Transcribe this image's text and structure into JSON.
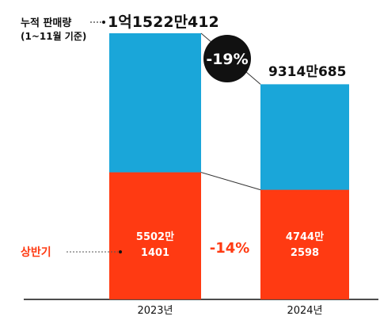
{
  "chart_data": {
    "type": "bar",
    "stacked": true,
    "categories": [
      "2023년",
      "2024년"
    ],
    "series": [
      {
        "name": "상반기",
        "values": [
          55021401,
          47442598
        ],
        "labels": [
          "5502만\n1401",
          "4744만\n2598"
        ],
        "color": "#ff3a12"
      },
      {
        "name": "누적 판매량",
        "values": [
          115220412,
          93140685
        ],
        "color": "#1aa6d9"
      }
    ],
    "totals": [
      "1억1522만412",
      "9314만685"
    ],
    "legend_cumulative": "누적 판매량",
    "legend_cumulative_sub": "(1~11월 기준)",
    "legend_half": "상반기",
    "change_total": "-19%",
    "change_half": "-14%",
    "colors": {
      "cumulative": "#1aa6d9",
      "half": "#ff3a12",
      "badge_total_bg": "#111111",
      "badge_total_text": "#ffffff",
      "badge_half_bg": "#ffffff",
      "badge_half_text": "#ff3a12",
      "label_half": "#ff3a12"
    }
  }
}
